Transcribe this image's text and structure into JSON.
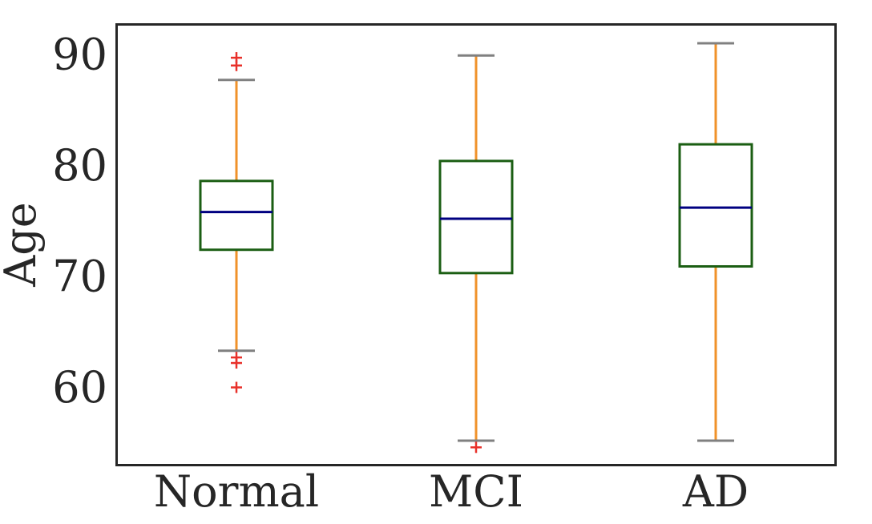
{
  "chart_data": {
    "type": "box",
    "title": "",
    "xlabel": "",
    "ylabel": "Age",
    "ylim": [
      53.0,
      92.7
    ],
    "yticks": [
      60,
      70,
      80,
      90
    ],
    "ytick_labels": [
      "60",
      "70",
      "80",
      "90"
    ],
    "categories": [
      "Normal",
      "MCI",
      "AD"
    ],
    "grid": false,
    "legend": "none",
    "boxes": [
      {
        "category": "Normal",
        "whisker_low": 63.3,
        "q1": 72.4,
        "median": 75.8,
        "q3": 78.6,
        "whisker_high": 87.7,
        "outliers": [
          62.2,
          62.7,
          60.0,
          89.0,
          89.7
        ]
      },
      {
        "category": "MCI",
        "whisker_low": 55.2,
        "q1": 70.3,
        "median": 75.2,
        "q3": 80.4,
        "whisker_high": 89.9,
        "outliers": [
          54.6
        ]
      },
      {
        "category": "AD",
        "whisker_low": 55.2,
        "q1": 70.9,
        "median": 76.2,
        "q3": 81.9,
        "whisker_high": 91.0,
        "outliers": []
      }
    ],
    "colors": {
      "box": "#1b5e13",
      "median": "#000080",
      "whisker": "#f0922a",
      "cap": "#808080",
      "outlier": "#e8302a",
      "axes": "#262626"
    }
  }
}
